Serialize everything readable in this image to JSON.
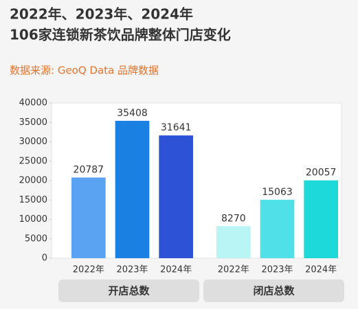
{
  "chart_data": {
    "type": "bar",
    "title": "2022年、2023年、2024年",
    "subtitle": "106家连锁新茶饮品牌整体门店变化",
    "source": "数据来源: GeoQ Data 品牌数据",
    "series": [
      {
        "name": "开店总数",
        "categories": [
          "2022年",
          "2023年",
          "2024年"
        ],
        "values": [
          20787,
          35408,
          31641
        ],
        "colors": [
          "#5aa2f2",
          "#1a80e2",
          "#2d52d6"
        ]
      },
      {
        "name": "闭店总数",
        "categories": [
          "2022年",
          "2023年",
          "2024年"
        ],
        "values": [
          8270,
          15063,
          20057
        ],
        "colors": [
          "#baf5f6",
          "#4fe0e8",
          "#1dd9da"
        ]
      }
    ],
    "ylim": [
      0,
      40000
    ],
    "yticks": [
      0,
      5000,
      10000,
      15000,
      20000,
      25000,
      30000,
      35000,
      40000
    ],
    "grid": false
  }
}
